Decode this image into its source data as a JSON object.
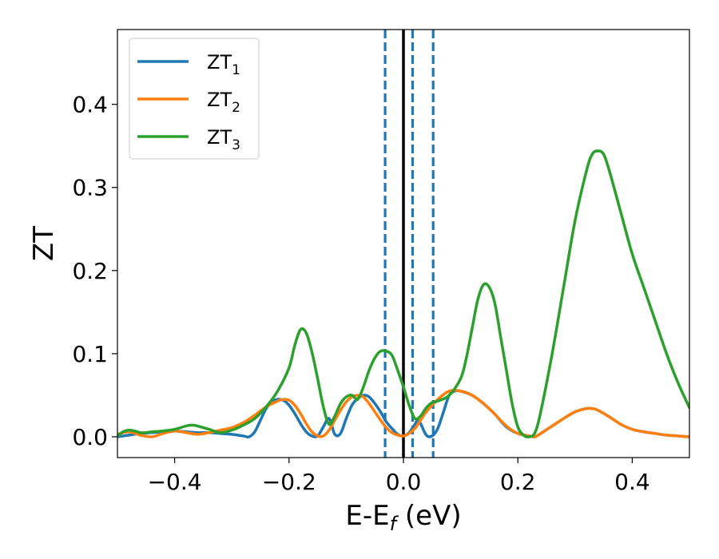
{
  "chart_data": {
    "type": "line",
    "xlabel": "E-E",
    "xlabel_sub": "f",
    "xlabel_unit": " (eV)",
    "ylabel": "ZT",
    "xlim": [
      -0.5,
      0.5
    ],
    "ylim": [
      -0.025,
      0.49
    ],
    "x_ticks": [
      -0.4,
      -0.2,
      0.0,
      0.2,
      0.4
    ],
    "x_tick_labels": [
      "−0.4",
      "−0.2",
      "0.0",
      "0.2",
      "0.4"
    ],
    "y_ticks": [
      0.0,
      0.1,
      0.2,
      0.3,
      0.4
    ],
    "y_tick_labels": [
      "0.0",
      "0.1",
      "0.2",
      "0.3",
      "0.4"
    ],
    "grid": false,
    "legend_position": "upper-left",
    "vertical_lines": [
      {
        "x": 0.0,
        "style": "solid",
        "color": "#000000"
      },
      {
        "x": -0.032,
        "style": "dashed",
        "color": "#1f77b4"
      },
      {
        "x": 0.016,
        "style": "dashed",
        "color": "#1f77b4"
      },
      {
        "x": 0.052,
        "style": "dashed",
        "color": "#1f77b4"
      }
    ],
    "series": [
      {
        "name": "ZT",
        "name_sub": "1",
        "color": "#1f77b4",
        "x": [
          -0.5,
          -0.48,
          -0.46,
          -0.44,
          -0.42,
          -0.4,
          -0.38,
          -0.36,
          -0.34,
          -0.32,
          -0.3,
          -0.28,
          -0.27,
          -0.26,
          -0.25,
          -0.24,
          -0.23,
          -0.22,
          -0.21,
          -0.2,
          -0.19,
          -0.18,
          -0.17,
          -0.16,
          -0.15,
          -0.14,
          -0.13,
          -0.12,
          -0.11,
          -0.1,
          -0.09,
          -0.08,
          -0.07,
          -0.06,
          -0.05,
          -0.04,
          -0.03,
          -0.02,
          -0.01,
          0.0,
          0.01,
          0.02,
          0.025,
          0.03,
          0.04,
          0.05,
          0.06,
          0.07,
          0.08,
          0.09,
          0.1,
          0.12,
          0.14,
          0.16,
          0.18,
          0.2,
          0.22,
          0.23,
          0.24,
          0.26,
          0.28,
          0.3,
          0.32,
          0.33,
          0.34,
          0.36,
          0.38,
          0.4,
          0.42,
          0.44,
          0.46,
          0.48,
          0.5
        ],
        "y": [
          0.0,
          0.002,
          0.004,
          0.005,
          0.006,
          0.007,
          0.006,
          0.005,
          0.005,
          0.004,
          0.003,
          0.001,
          0.0,
          0.006,
          0.02,
          0.034,
          0.042,
          0.045,
          0.044,
          0.038,
          0.028,
          0.016,
          0.006,
          0.001,
          0.001,
          0.012,
          0.022,
          0.003,
          0.004,
          0.022,
          0.038,
          0.046,
          0.05,
          0.048,
          0.04,
          0.03,
          0.018,
          0.01,
          0.003,
          0.001,
          0.005,
          0.015,
          0.02,
          0.016,
          0.002,
          0.001,
          0.01,
          0.03,
          0.05,
          0.055,
          0.055,
          0.05,
          0.04,
          0.027,
          0.012,
          0.004,
          0.001,
          0.0,
          0.004,
          0.013,
          0.022,
          0.03,
          0.034,
          0.034,
          0.032,
          0.024,
          0.015,
          0.009,
          0.006,
          0.004,
          0.002,
          0.001,
          0.0
        ]
      },
      {
        "name": "ZT",
        "name_sub": "2",
        "color": "#ff7f0e",
        "x": [
          -0.5,
          -0.48,
          -0.46,
          -0.44,
          -0.42,
          -0.4,
          -0.38,
          -0.36,
          -0.34,
          -0.32,
          -0.3,
          -0.28,
          -0.26,
          -0.24,
          -0.22,
          -0.21,
          -0.2,
          -0.19,
          -0.18,
          -0.17,
          -0.16,
          -0.15,
          -0.14,
          -0.13,
          -0.12,
          -0.11,
          -0.1,
          -0.09,
          -0.08,
          -0.07,
          -0.06,
          -0.05,
          -0.04,
          -0.03,
          -0.02,
          -0.01,
          0.0,
          0.01,
          0.02,
          0.03,
          0.04,
          0.06,
          0.08,
          0.1,
          0.12,
          0.14,
          0.16,
          0.18,
          0.2,
          0.22,
          0.23,
          0.24,
          0.26,
          0.28,
          0.3,
          0.32,
          0.33,
          0.34,
          0.36,
          0.38,
          0.4,
          0.42,
          0.44,
          0.46,
          0.48,
          0.5
        ],
        "y": [
          0.003,
          0.006,
          0.002,
          0.0,
          0.004,
          0.007,
          0.005,
          0.003,
          0.005,
          0.008,
          0.011,
          0.017,
          0.026,
          0.036,
          0.043,
          0.045,
          0.044,
          0.038,
          0.028,
          0.016,
          0.006,
          0.001,
          0.001,
          0.008,
          0.02,
          0.032,
          0.042,
          0.048,
          0.05,
          0.048,
          0.04,
          0.03,
          0.02,
          0.011,
          0.005,
          0.002,
          0.001,
          0.004,
          0.01,
          0.02,
          0.03,
          0.045,
          0.055,
          0.055,
          0.05,
          0.04,
          0.027,
          0.013,
          0.004,
          0.001,
          0.0,
          0.004,
          0.013,
          0.022,
          0.03,
          0.034,
          0.034,
          0.032,
          0.024,
          0.015,
          0.009,
          0.006,
          0.004,
          0.002,
          0.001,
          0.0
        ]
      },
      {
        "name": "ZT",
        "name_sub": "3",
        "color": "#2ca02c",
        "x": [
          -0.5,
          -0.49,
          -0.48,
          -0.47,
          -0.46,
          -0.45,
          -0.44,
          -0.42,
          -0.4,
          -0.38,
          -0.37,
          -0.36,
          -0.34,
          -0.32,
          -0.3,
          -0.28,
          -0.26,
          -0.24,
          -0.22,
          -0.2,
          -0.19,
          -0.18,
          -0.17,
          -0.16,
          -0.15,
          -0.14,
          -0.13,
          -0.12,
          -0.11,
          -0.1,
          -0.09,
          -0.08,
          -0.07,
          -0.06,
          -0.05,
          -0.04,
          -0.03,
          -0.02,
          -0.01,
          0.0,
          0.01,
          0.02,
          0.03,
          0.04,
          0.05,
          0.06,
          0.08,
          0.1,
          0.11,
          0.12,
          0.13,
          0.14,
          0.15,
          0.16,
          0.17,
          0.18,
          0.19,
          0.2,
          0.21,
          0.22,
          0.23,
          0.24,
          0.26,
          0.28,
          0.3,
          0.32,
          0.33,
          0.34,
          0.35,
          0.36,
          0.38,
          0.4,
          0.42,
          0.44,
          0.46,
          0.48,
          0.5
        ],
        "y": [
          0.001,
          0.006,
          0.008,
          0.007,
          0.005,
          0.005,
          0.006,
          0.007,
          0.009,
          0.013,
          0.014,
          0.013,
          0.009,
          0.005,
          0.008,
          0.014,
          0.022,
          0.036,
          0.055,
          0.083,
          0.11,
          0.129,
          0.125,
          0.102,
          0.07,
          0.036,
          0.015,
          0.025,
          0.04,
          0.048,
          0.05,
          0.045,
          0.06,
          0.08,
          0.095,
          0.103,
          0.103,
          0.098,
          0.08,
          0.06,
          0.038,
          0.022,
          0.025,
          0.035,
          0.041,
          0.043,
          0.05,
          0.07,
          0.095,
          0.13,
          0.165,
          0.183,
          0.18,
          0.16,
          0.12,
          0.08,
          0.04,
          0.012,
          0.002,
          0.0,
          0.005,
          0.03,
          0.1,
          0.18,
          0.26,
          0.32,
          0.34,
          0.344,
          0.34,
          0.32,
          0.27,
          0.22,
          0.18,
          0.14,
          0.1,
          0.065,
          0.035
        ]
      }
    ]
  }
}
